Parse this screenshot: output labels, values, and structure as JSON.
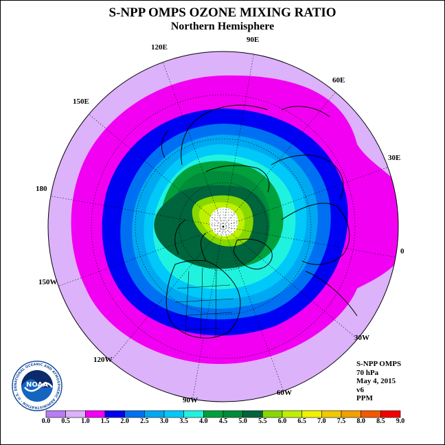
{
  "title": "S-NPP OMPS OZONE MIXING RATIO",
  "subtitle": "Northern Hemisphere",
  "longitude_labels": [
    "90E",
    "60E",
    "30E",
    "0",
    "30W",
    "60W",
    "90W",
    "120W",
    "150W",
    "180",
    "150E",
    "120E"
  ],
  "info": {
    "instrument": "S-NPP OMPS",
    "level": "70 hPa",
    "date": "May 4, 2015",
    "version": "v6",
    "units": "PPM"
  },
  "logo": {
    "text": "NOAA",
    "ring_text": "NATIONAL OCEANIC AND ATMOSPHERIC ADMINISTRATION · U.S. DEPARTMENT OF COMMERCE"
  },
  "colorbar": {
    "ticks": [
      "0.0",
      "0.5",
      "1.0",
      "1.5",
      "2.0",
      "2.5",
      "3.0",
      "3.5",
      "4.0",
      "4.5",
      "5.0",
      "5.5",
      "6.0",
      "6.5",
      "7.0",
      "7.5",
      "8.0",
      "8.5",
      "9.0"
    ],
    "colors": [
      "#b77ef2",
      "#dcb2fa",
      "#f200f2",
      "#0000f2",
      "#0070f2",
      "#00a8f2",
      "#00c8f8",
      "#20f2e0",
      "#00a03c",
      "#008c3a",
      "#00643c",
      "#88d800",
      "#bef000",
      "#f2f200",
      "#f2c800",
      "#f2a000",
      "#f25800",
      "#f20000",
      "#8c5a3c"
    ]
  }
}
